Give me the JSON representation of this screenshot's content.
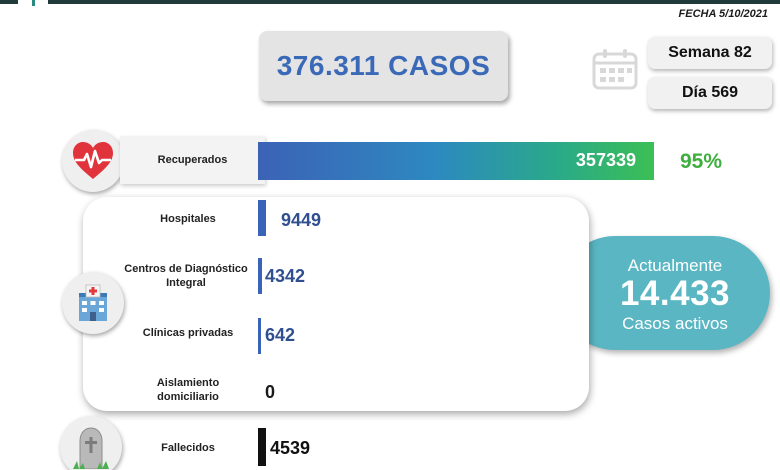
{
  "header": {
    "fecha": "FECHA 5/10/2021",
    "total_cases": "376.311 CASOS",
    "week": "Semana 82",
    "day": "Día 569",
    "accent": "#3a6ab7"
  },
  "recovered": {
    "label": "Recuperados",
    "value": "357339",
    "percent": "95%",
    "fraction": 0.95
  },
  "facilities": [
    {
      "label": "Hospitales",
      "value": "9449"
    },
    {
      "label": "Centros de Diagnóstico Integral",
      "value": "4342"
    },
    {
      "label": "Clínicas privadas",
      "value": "642"
    },
    {
      "label": "Aislamiento domiciliario",
      "value": "0"
    }
  ],
  "active": {
    "label": "Actualmente",
    "number": "14.433",
    "sub": "Casos activos",
    "color": "#5ab6c3"
  },
  "deaths": {
    "label": "Fallecidos",
    "value": "4539"
  },
  "icons": {
    "calendar": "calendar-icon",
    "heart": "heart-pulse-icon",
    "hospital": "hospital-icon",
    "grave": "tombstone-icon"
  }
}
